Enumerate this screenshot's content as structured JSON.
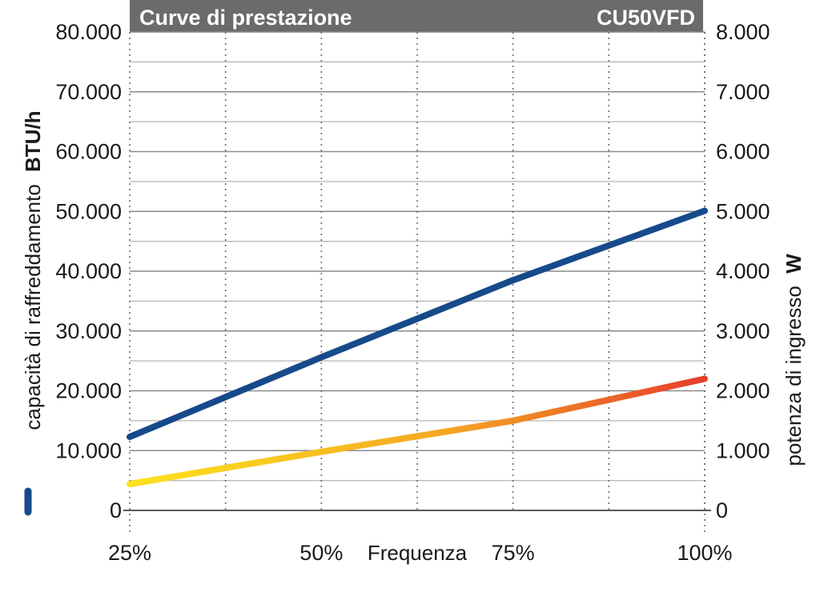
{
  "chart_data": {
    "type": "line",
    "title": "Curve di prestazione",
    "model": "CU50VFD",
    "xlabel": "Frequenza",
    "x": [
      "25%",
      "50%",
      "75%",
      "100%"
    ],
    "ylabel_left": "capacità di raffreddamento",
    "ylabel_left_unit": "BTU/h",
    "ylabel_right": "potenza di ingresso",
    "ylabel_right_unit": "W",
    "yticks_left": [
      "0",
      "10.000",
      "20.000",
      "30.000",
      "40.000",
      "50.000",
      "60.000",
      "70.000",
      "80.000"
    ],
    "yticks_right": [
      "0",
      "1.000",
      "2.000",
      "3.000",
      "4.000",
      "5.000",
      "6.000",
      "7.000",
      "8.000"
    ],
    "ylim_left": [
      0,
      80000
    ],
    "ylim_right": [
      0,
      8000
    ],
    "series": [
      {
        "axis": "left",
        "color": "#174a8b",
        "points": [
          [
            25,
            12300
          ],
          [
            50,
            25600
          ],
          [
            75,
            38500
          ],
          [
            100,
            50100
          ]
        ]
      },
      {
        "axis": "right",
        "color_start": "#fde21e",
        "color_end": "#e63e2b",
        "points": [
          [
            25,
            440
          ],
          [
            50,
            980
          ],
          [
            75,
            1500
          ],
          [
            100,
            2200
          ]
        ]
      }
    ],
    "grid": true
  }
}
